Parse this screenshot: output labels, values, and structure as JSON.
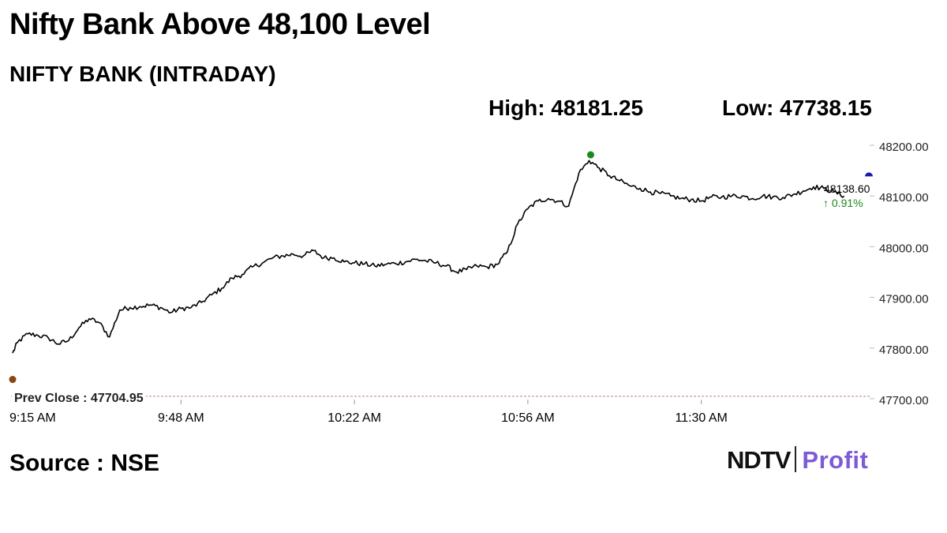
{
  "headline": "Nifty Bank Above 48,100 Level",
  "source": "Source : NSE",
  "brand": {
    "part1": "NDTV",
    "part2": "Profit"
  },
  "chart_data": {
    "type": "line",
    "title": "NIFTY BANK (INTRADAY)",
    "high_label": "High: 48181.25",
    "low_label": "Low: 47738.15",
    "prev_close_label": "Prev Close : 47704.95",
    "prev_close": 47704.95,
    "last_price_label": "48138.60",
    "change_label": "↑ 0.91%",
    "ylim": [
      47700,
      48200
    ],
    "y_ticks": [
      "48200.00",
      "48100.00",
      "48000.00",
      "47900.00",
      "47800.00",
      "47700.00"
    ],
    "x_ticks": [
      "9:15 AM",
      "9:48 AM",
      "10:22 AM",
      "10:56 AM",
      "11:30 AM"
    ],
    "grid": false,
    "colors": {
      "line": "#000000",
      "high_marker": "#1a8a1a",
      "low_marker": "#8b4513",
      "change": "#1a8a1a",
      "last_marker": "#1a1aa6",
      "prev_close_line": "#c08080"
    },
    "series": [
      {
        "x": [
          "9:15",
          "9:16",
          "9:18",
          "9:20",
          "9:22",
          "9:24",
          "9:26",
          "9:28",
          "9:30",
          "9:32",
          "9:34",
          "9:36",
          "9:38",
          "9:40",
          "9:42",
          "9:44",
          "9:46",
          "9:48",
          "9:50",
          "9:52",
          "9:54",
          "9:56",
          "9:58",
          "10:00",
          "10:02",
          "10:04",
          "10:06",
          "10:08",
          "10:10",
          "10:12",
          "10:14",
          "10:16",
          "10:18",
          "10:20",
          "10:22",
          "10:24",
          "10:26",
          "10:28",
          "10:30",
          "10:32",
          "10:34",
          "10:36",
          "10:38",
          "10:40",
          "10:42",
          "10:44",
          "10:46",
          "10:48",
          "10:50",
          "10:52",
          "10:54",
          "10:56",
          "10:58",
          "11:00",
          "11:02",
          "11:04",
          "11:06",
          "11:08",
          "11:10",
          "11:12",
          "11:14",
          "11:16",
          "11:18",
          "11:20",
          "11:22",
          "11:24",
          "11:26",
          "11:28",
          "11:30",
          "11:32",
          "11:34",
          "11:36",
          "11:38",
          "11:40",
          "11:42",
          "11:44",
          "11:46",
          "11:48",
          "11:50",
          "11:52",
          "11:54",
          "11:56",
          "11:58"
        ],
        "values": [
          47790,
          47812,
          47828,
          47825,
          47820,
          47808,
          47815,
          47840,
          47858,
          47850,
          47822,
          47875,
          47880,
          47882,
          47885,
          47880,
          47870,
          47878,
          47880,
          47890,
          47905,
          47918,
          47938,
          47945,
          47960,
          47968,
          47978,
          47982,
          47985,
          47982,
          47992,
          47978,
          47978,
          47970,
          47968,
          47966,
          47962,
          47965,
          47967,
          47970,
          47975,
          47972,
          47968,
          47962,
          47950,
          47955,
          47962,
          47960,
          47965,
          47990,
          48045,
          48075,
          48090,
          48095,
          48090,
          48080,
          48145,
          48170,
          48155,
          48140,
          48130,
          48120,
          48115,
          48108,
          48105,
          48100,
          48095,
          48093,
          48090,
          48098,
          48098,
          48100,
          48100,
          48095,
          48100,
          48098,
          48097,
          48103,
          48110,
          48118,
          48115,
          48108,
          48100
        ]
      }
    ]
  }
}
